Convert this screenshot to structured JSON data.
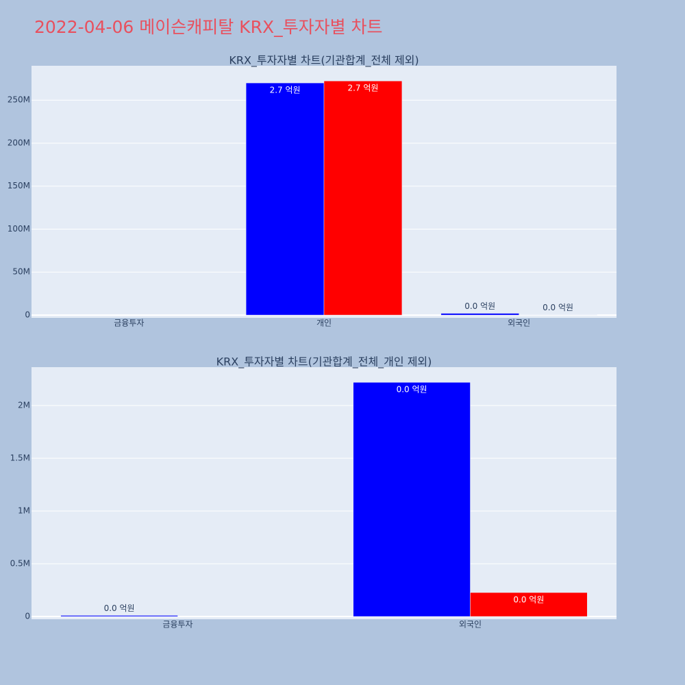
{
  "title": "2022-04-06 메이슨캐피탈 KRX_투자자별 차트",
  "chart_data": [
    {
      "type": "bar",
      "title": "KRX_투자자별 차트(기관합계_전체 제외)",
      "categories": [
        "금융투자",
        "개인",
        "외국인"
      ],
      "series": [
        {
          "color": "#0000ff",
          "values": [
            null,
            270000000,
            2000000
          ],
          "value_labels": [
            null,
            "2.7 억원",
            "0.0 억원"
          ]
        },
        {
          "color": "#ff0000",
          "values": [
            null,
            272300000,
            300000
          ],
          "value_labels": [
            null,
            "2.7 억원",
            "0.0 억원"
          ]
        }
      ],
      "ylim": [
        -3200000,
        290000000
      ],
      "yticks": [
        0,
        {
          "value": 50000000,
          "label": "50M"
        },
        {
          "value": 100000000,
          "label": "100M"
        },
        {
          "value": 150000000,
          "label": "150M"
        },
        {
          "value": 200000000,
          "label": "200M"
        },
        {
          "value": 250000000,
          "label": "250M"
        }
      ],
      "grid": true
    },
    {
      "type": "bar",
      "title": "KRX_투자자별 차트(기관합계_전체_개인 제외)",
      "categories": [
        "금융투자",
        "외국인"
      ],
      "series": [
        {
          "color": "#0000ff",
          "values": [
            10000,
            2220000
          ],
          "value_labels": [
            "0.0 억원",
            "0.0 억원"
          ]
        },
        {
          "color": "#ff0000",
          "values": [
            null,
            227000
          ],
          "value_labels": [
            null,
            "0.0 억원"
          ]
        }
      ],
      "ylim": [
        -26000,
        2364000
      ],
      "yticks": [
        0,
        {
          "value": 500000,
          "label": "0.5M"
        },
        {
          "value": 1000000,
          "label": "1M"
        },
        {
          "value": 1500000,
          "label": "1.5M"
        },
        {
          "value": 2000000,
          "label": "2M"
        }
      ],
      "grid": true
    }
  ]
}
